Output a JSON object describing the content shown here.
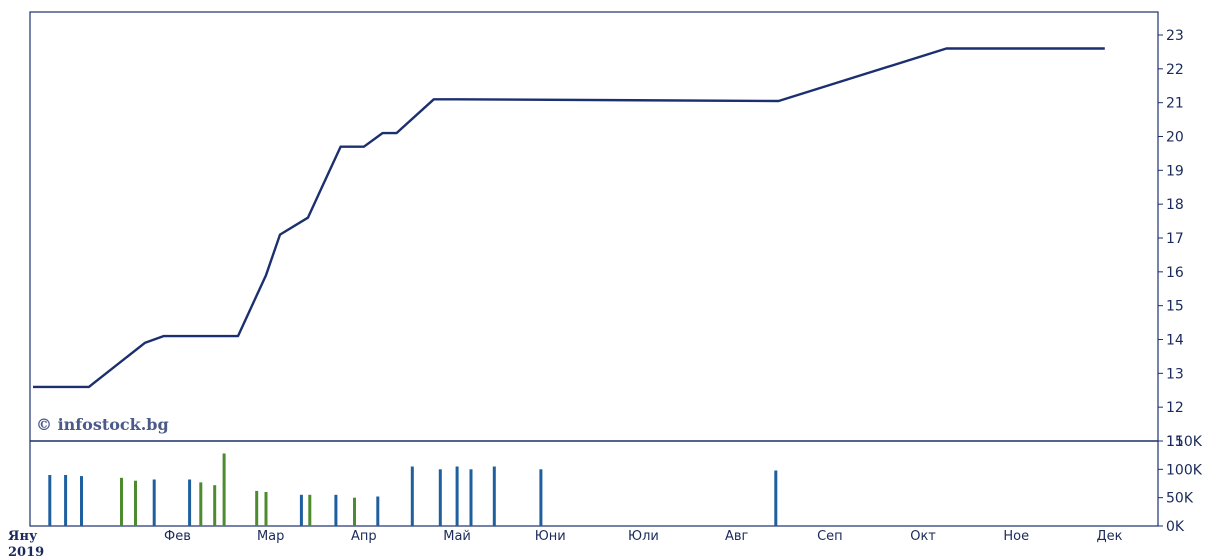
{
  "watermark": "© infostock.bg",
  "year_label": "2019",
  "chart_data": [
    {
      "type": "line",
      "x_unit": "month index (0 = start of Jan 2019)",
      "x": [
        0,
        0.6,
        1.2,
        1.4,
        2.2,
        2.5,
        2.65,
        2.95,
        3.1,
        3.3,
        3.55,
        3.75,
        3.9,
        4.3,
        4.55,
        8.0,
        9.8,
        11.5
      ],
      "y": [
        12.6,
        12.6,
        13.9,
        14.1,
        14.1,
        15.9,
        17.1,
        17.6,
        18.5,
        19.7,
        19.7,
        20.1,
        20.1,
        21.1,
        21.1,
        21.05,
        22.6,
        22.6
      ],
      "color": "#1c2f6e",
      "ylim": [
        11,
        23
      ],
      "yticks": [
        11,
        12,
        13,
        14,
        15,
        16,
        17,
        18,
        19,
        20,
        21,
        22,
        23
      ],
      "grid": false
    },
    {
      "type": "bar",
      "x_unit": "month index (0 = start of Jan 2019)",
      "ylim": [
        0,
        170000
      ],
      "ytick_values": [
        0,
        50000,
        100000,
        150000
      ],
      "ytick_labels": [
        "0K",
        "50K",
        "100K",
        "150K"
      ],
      "bars": [
        {
          "x": 0.18,
          "v": 90000,
          "c": "#1f5f9e"
        },
        {
          "x": 0.35,
          "v": 90000,
          "c": "#1f5f9e"
        },
        {
          "x": 0.52,
          "v": 88000,
          "c": "#1f5f9e"
        },
        {
          "x": 0.95,
          "v": 85000,
          "c": "#4c8c2e"
        },
        {
          "x": 1.1,
          "v": 80000,
          "c": "#4c8c2e"
        },
        {
          "x": 1.3,
          "v": 82000,
          "c": "#1f5f9e"
        },
        {
          "x": 1.68,
          "v": 82000,
          "c": "#1f5f9e"
        },
        {
          "x": 1.8,
          "v": 77000,
          "c": "#4c8c2e"
        },
        {
          "x": 1.95,
          "v": 72000,
          "c": "#4c8c2e"
        },
        {
          "x": 2.05,
          "v": 128000,
          "c": "#4c8c2e"
        },
        {
          "x": 2.4,
          "v": 62000,
          "c": "#4c8c2e"
        },
        {
          "x": 2.5,
          "v": 60000,
          "c": "#4c8c2e"
        },
        {
          "x": 2.88,
          "v": 55000,
          "c": "#1f5f9e"
        },
        {
          "x": 2.97,
          "v": 55000,
          "c": "#4c8c2e"
        },
        {
          "x": 3.25,
          "v": 55000,
          "c": "#1f5f9e"
        },
        {
          "x": 3.45,
          "v": 50000,
          "c": "#4c8c2e"
        },
        {
          "x": 3.7,
          "v": 52000,
          "c": "#1f5f9e"
        },
        {
          "x": 4.07,
          "v": 105000,
          "c": "#1f5f9e"
        },
        {
          "x": 4.37,
          "v": 100000,
          "c": "#1f5f9e"
        },
        {
          "x": 4.55,
          "v": 105000,
          "c": "#1f5f9e"
        },
        {
          "x": 4.7,
          "v": 100000,
          "c": "#1f5f9e"
        },
        {
          "x": 4.95,
          "v": 105000,
          "c": "#1f5f9e"
        },
        {
          "x": 5.45,
          "v": 100000,
          "c": "#1f5f9e"
        },
        {
          "x": 7.97,
          "v": 98000,
          "c": "#1f5f9e"
        }
      ]
    }
  ],
  "months": [
    "Яну",
    "Фев",
    "Мар",
    "Апр",
    "Май",
    "Юни",
    "Юли",
    "Авг",
    "Сеп",
    "Окт",
    "Ное",
    "Дек"
  ]
}
